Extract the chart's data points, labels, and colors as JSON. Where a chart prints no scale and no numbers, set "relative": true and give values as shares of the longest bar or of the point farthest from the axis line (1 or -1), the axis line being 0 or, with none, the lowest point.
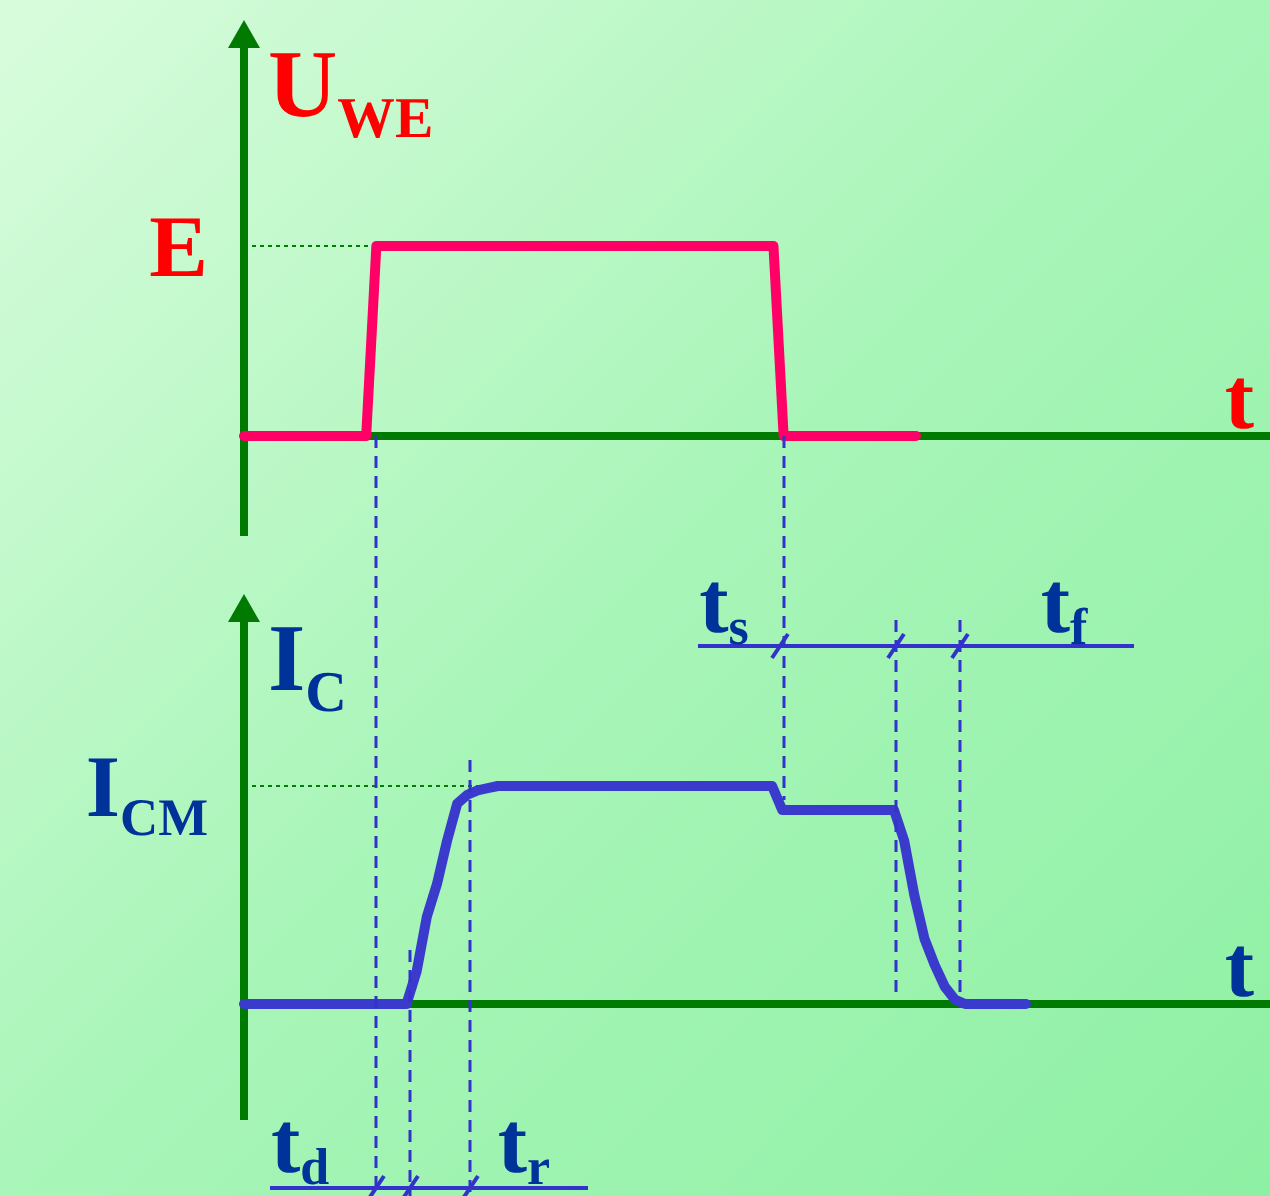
{
  "chart_data": [
    {
      "type": "line",
      "relative": true,
      "ylabel": "U$_{WE}$",
      "xlabel": "t",
      "tick_labels": false,
      "legend": false,
      "marker": "none",
      "categories": [
        null,
        null,
        null,
        null,
        null,
        null,
        null,
        null,
        null,
        null,
        null,
        null,
        null,
        null,
        null,
        null,
        null,
        null,
        null,
        null,
        null,
        null,
        null,
        null,
        null,
        null,
        null,
        null,
        null,
        null,
        null,
        null,
        null,
        null,
        null,
        null,
        null,
        null,
        null,
        null,
        null,
        null,
        null,
        null,
        null,
        null,
        null,
        null,
        null,
        null,
        null,
        null,
        null,
        null,
        null,
        null,
        null,
        null,
        null,
        null,
        null,
        null,
        null,
        null,
        null,
        null,
        null
      ],
      "series": [
        {
          "color": "#ff0066",
          "values": [
            0,
            0,
            0,
            0,
            0,
            0,
            0,
            0,
            0,
            0,
            0,
            0,
            0,
            1,
            1,
            1,
            1,
            1,
            1,
            1,
            1,
            1,
            1,
            1,
            1,
            1,
            1,
            1,
            1,
            1,
            1,
            1,
            1,
            1,
            1,
            1,
            1,
            1,
            1,
            1,
            1,
            1,
            1,
            1,
            1,
            1,
            1,
            1,
            1,
            1,
            1,
            1,
            1,
            0,
            0,
            0,
            0,
            0,
            0,
            0,
            0,
            0,
            0,
            0,
            0,
            0,
            0
          ]
        }
      ],
      "ref_lines": [
        {
          "axis": "y",
          "value": 1,
          "label": "E",
          "color": "#008000",
          "line_style": "dotted"
        }
      ]
    },
    {
      "type": "line",
      "relative": true,
      "ylabel": "I$_{C}$",
      "xlabel": "t",
      "tick_labels": false,
      "legend": false,
      "marker": "none",
      "categories": [
        null,
        null,
        null,
        null,
        null,
        null,
        null,
        null,
        null,
        null,
        null,
        null,
        null,
        null,
        null,
        null,
        null,
        null,
        null,
        null,
        null,
        null,
        null,
        null,
        null,
        null,
        null,
        null,
        null,
        null,
        null,
        null,
        null,
        null,
        null,
        null,
        null,
        null,
        null,
        null,
        null,
        null,
        null,
        null,
        null,
        null,
        null,
        null,
        null,
        null,
        null,
        null,
        null,
        null,
        null,
        null,
        null,
        null,
        null,
        null,
        null,
        null,
        null,
        null,
        null,
        null,
        null,
        null,
        null,
        null,
        null,
        null,
        null,
        null,
        null,
        null,
        null,
        null
      ],
      "series": [
        {
          "color": "#3a3acc",
          "values": [
            0,
            0,
            0,
            0,
            0,
            0,
            0,
            0,
            0,
            0,
            0,
            0,
            0,
            0,
            0,
            0,
            0,
            0.15,
            0.4,
            0.55,
            0.75,
            0.92,
            0.96,
            0.98,
            0.99,
            1,
            1,
            1,
            1,
            1,
            1,
            1,
            1,
            1,
            1,
            1,
            1,
            1,
            1,
            1,
            1,
            1,
            1,
            1,
            1,
            1,
            1,
            1,
            1,
            1,
            1,
            1,
            1,
            0.89,
            0.89,
            0.89,
            0.89,
            0.89,
            0.89,
            0.89,
            0.89,
            0.89,
            0.89,
            0.89,
            0.89,
            0.75,
            0.5,
            0.3,
            0.18,
            0.08,
            0.02,
            0,
            0,
            0,
            0,
            0,
            0,
            0
          ]
        }
      ],
      "ref_lines": [
        {
          "axis": "y",
          "value": 1,
          "label": "I$_{CM}$",
          "color": "#008000",
          "line_style": "dotted"
        }
      ],
      "annotations": [
        "t$_{d}$",
        "t$_{r}$",
        "t$_{s}$",
        "t$_{f}$"
      ]
    }
  ]
}
